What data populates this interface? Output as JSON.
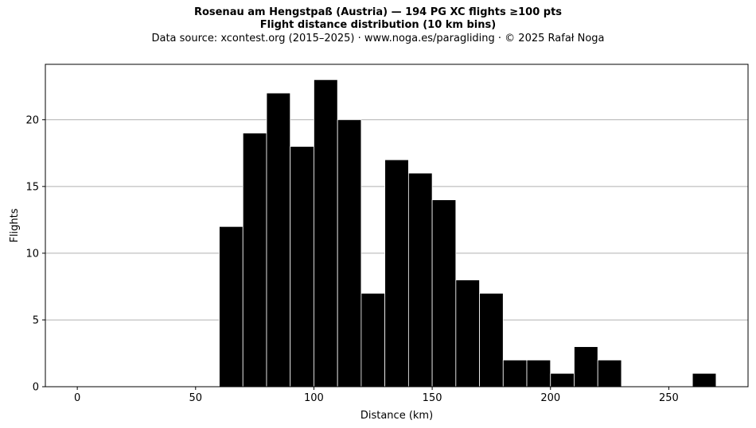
{
  "header": {
    "title": "Rosenau am Hengstpaß (Austria)  —  194 PG XC flights ≥100 pts",
    "subtitle": "Flight distance distribution (10 km bins)",
    "source": "Data source: xcontest.org (2015–2025)  ·  www.noga.es/paragliding  ·  © 2025 Rafał Noga"
  },
  "chart_data": {
    "type": "bar",
    "title": "Rosenau am Hengstpaß (Austria)  —  194 PG XC flights ≥100 pts",
    "subtitle": "Flight distance distribution (10 km bins)",
    "xlabel": "Distance (km)",
    "ylabel": "Flights",
    "xlim": [
      -13.5,
      283.5
    ],
    "ylim": [
      0,
      24.15
    ],
    "xticks": [
      0,
      50,
      100,
      150,
      200,
      250
    ],
    "yticks": [
      0,
      5,
      10,
      15,
      20
    ],
    "grid": "y",
    "bin_width": 10,
    "bins": [
      {
        "start": 60,
        "end": 70,
        "count": 12
      },
      {
        "start": 70,
        "end": 80,
        "count": 19
      },
      {
        "start": 80,
        "end": 90,
        "count": 22
      },
      {
        "start": 90,
        "end": 100,
        "count": 18
      },
      {
        "start": 100,
        "end": 110,
        "count": 23
      },
      {
        "start": 110,
        "end": 120,
        "count": 20
      },
      {
        "start": 120,
        "end": 130,
        "count": 7
      },
      {
        "start": 130,
        "end": 140,
        "count": 17
      },
      {
        "start": 140,
        "end": 150,
        "count": 16
      },
      {
        "start": 150,
        "end": 160,
        "count": 14
      },
      {
        "start": 160,
        "end": 170,
        "count": 8
      },
      {
        "start": 170,
        "end": 180,
        "count": 7
      },
      {
        "start": 180,
        "end": 190,
        "count": 2
      },
      {
        "start": 190,
        "end": 200,
        "count": 2
      },
      {
        "start": 200,
        "end": 210,
        "count": 1
      },
      {
        "start": 210,
        "end": 220,
        "count": 3
      },
      {
        "start": 220,
        "end": 230,
        "count": 2
      },
      {
        "start": 230,
        "end": 240,
        "count": 0
      },
      {
        "start": 240,
        "end": 250,
        "count": 0
      },
      {
        "start": 250,
        "end": 260,
        "count": 0
      },
      {
        "start": 260,
        "end": 270,
        "count": 1
      }
    ],
    "colors": {
      "bar": "#000000",
      "bar_edge": "#ffffff",
      "grid": "#b0b0b0",
      "axis": "#000000"
    }
  }
}
